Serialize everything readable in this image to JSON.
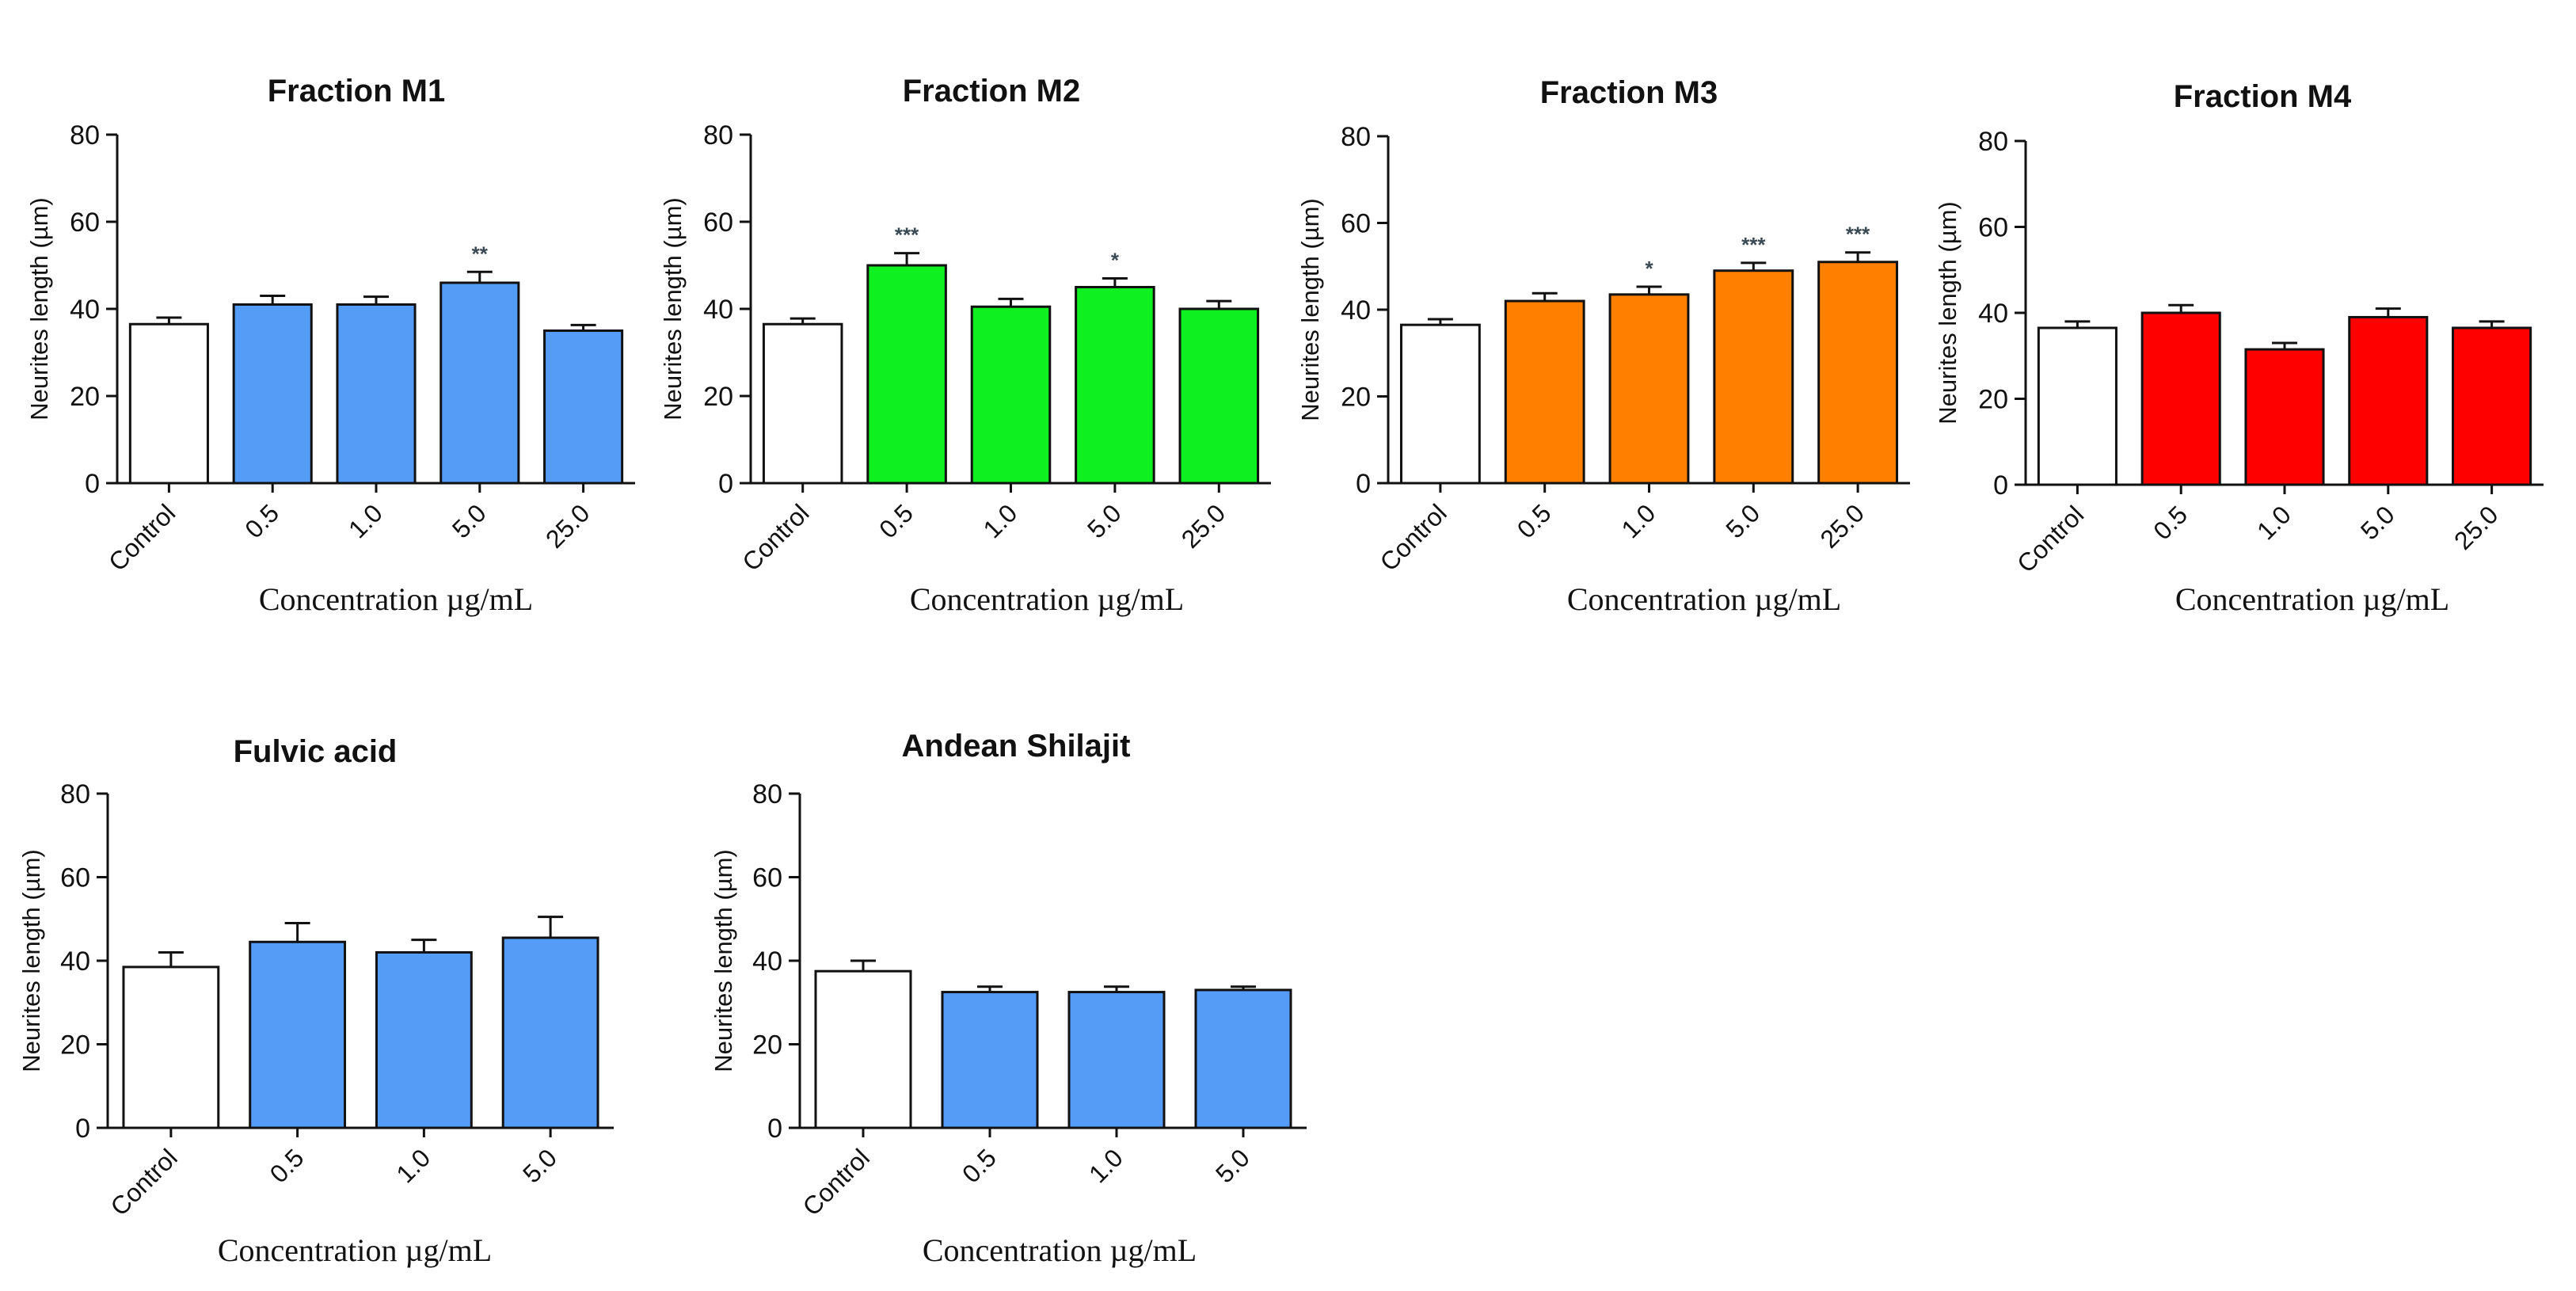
{
  "chart_data": [
    {
      "type": "bar",
      "title": "Fraction M1",
      "ylabel": "Neurites length (µm)",
      "xlabel": "Concentration µg/mL",
      "ylim": [
        0,
        80
      ],
      "yticks": [
        0,
        20,
        40,
        60,
        80
      ],
      "categories": [
        "Control",
        "0.5",
        "1.0",
        "5.0",
        "25.0"
      ],
      "values": [
        36.5,
        41.0,
        41.0,
        46.0,
        35.0
      ],
      "errors": [
        1.5,
        2.0,
        1.8,
        2.5,
        1.3
      ],
      "significance": [
        "",
        "",
        "",
        "**",
        ""
      ],
      "colors": [
        "#ffffff",
        "#559cf7",
        "#559cf7",
        "#559cf7",
        "#559cf7"
      ]
    },
    {
      "type": "bar",
      "title": "Fraction M2",
      "ylabel": "Neurites length (µm)",
      "xlabel": "Concentration µg/mL",
      "ylim": [
        0,
        80
      ],
      "yticks": [
        0,
        20,
        40,
        60,
        80
      ],
      "categories": [
        "Control",
        "0.5",
        "1.0",
        "5.0",
        "25.0"
      ],
      "values": [
        36.5,
        50.0,
        40.5,
        45.0,
        40.0
      ],
      "errors": [
        1.3,
        2.8,
        1.8,
        2.0,
        1.8
      ],
      "significance": [
        "",
        "***",
        "",
        "*",
        ""
      ],
      "colors": [
        "#ffffff",
        "#0ff020",
        "#0ff020",
        "#0ff020",
        "#0ff020"
      ]
    },
    {
      "type": "bar",
      "title": "Fraction M3",
      "ylabel": "Neurites length (µm)",
      "xlabel": "Concentration µg/mL",
      "ylim": [
        0,
        80
      ],
      "yticks": [
        0,
        20,
        40,
        60,
        80
      ],
      "categories": [
        "Control",
        "0.5",
        "1.0",
        "5.0",
        "25.0"
      ],
      "values": [
        36.5,
        42.0,
        43.5,
        49.0,
        51.0
      ],
      "errors": [
        1.3,
        1.8,
        1.8,
        1.8,
        2.2
      ],
      "significance": [
        "",
        "",
        "*",
        "***",
        "***"
      ],
      "colors": [
        "#ffffff",
        "#ff8000",
        "#ff8000",
        "#ff8000",
        "#ff8000"
      ]
    },
    {
      "type": "bar",
      "title": "Fraction M4",
      "ylabel": "Neurites length (µm)",
      "xlabel": "Concentration µg/mL",
      "ylim": [
        0,
        80
      ],
      "yticks": [
        0,
        20,
        40,
        60,
        80
      ],
      "categories": [
        "Control",
        "0.5",
        "1.0",
        "5.0",
        "25.0"
      ],
      "values": [
        36.5,
        40.0,
        31.5,
        39.0,
        36.5
      ],
      "errors": [
        1.5,
        1.8,
        1.5,
        2.0,
        1.5
      ],
      "significance": [
        "",
        "",
        "",
        "",
        ""
      ],
      "colors": [
        "#ffffff",
        "#ff0000",
        "#ff0000",
        "#ff0000",
        "#ff0000"
      ]
    },
    {
      "type": "bar",
      "title": "Fulvic acid",
      "ylabel": "Neurites length (µm)",
      "xlabel": "Concentration µg/mL",
      "ylim": [
        0,
        80
      ],
      "yticks": [
        0,
        20,
        40,
        60,
        80
      ],
      "categories": [
        "Control",
        "0.5",
        "1.0",
        "5.0"
      ],
      "values": [
        38.5,
        44.5,
        42.0,
        45.5
      ],
      "errors": [
        3.5,
        4.5,
        3.0,
        5.0
      ],
      "significance": [
        "",
        "",
        "",
        ""
      ],
      "colors": [
        "#ffffff",
        "#559cf7",
        "#559cf7",
        "#559cf7"
      ]
    },
    {
      "type": "bar",
      "title": "Andean Shilajit",
      "ylabel": "Neurites length (µm)",
      "xlabel": "Concentration µg/mL",
      "ylim": [
        0,
        80
      ],
      "yticks": [
        0,
        20,
        40,
        60,
        80
      ],
      "categories": [
        "Control",
        "0.5",
        "1.0",
        "5.0"
      ],
      "values": [
        37.5,
        32.5,
        32.5,
        33.0
      ],
      "errors": [
        2.5,
        1.3,
        1.3,
        0.8
      ],
      "significance": [
        "",
        "",
        "",
        ""
      ],
      "colors": [
        "#ffffff",
        "#559cf7",
        "#559cf7",
        "#559cf7"
      ]
    }
  ]
}
